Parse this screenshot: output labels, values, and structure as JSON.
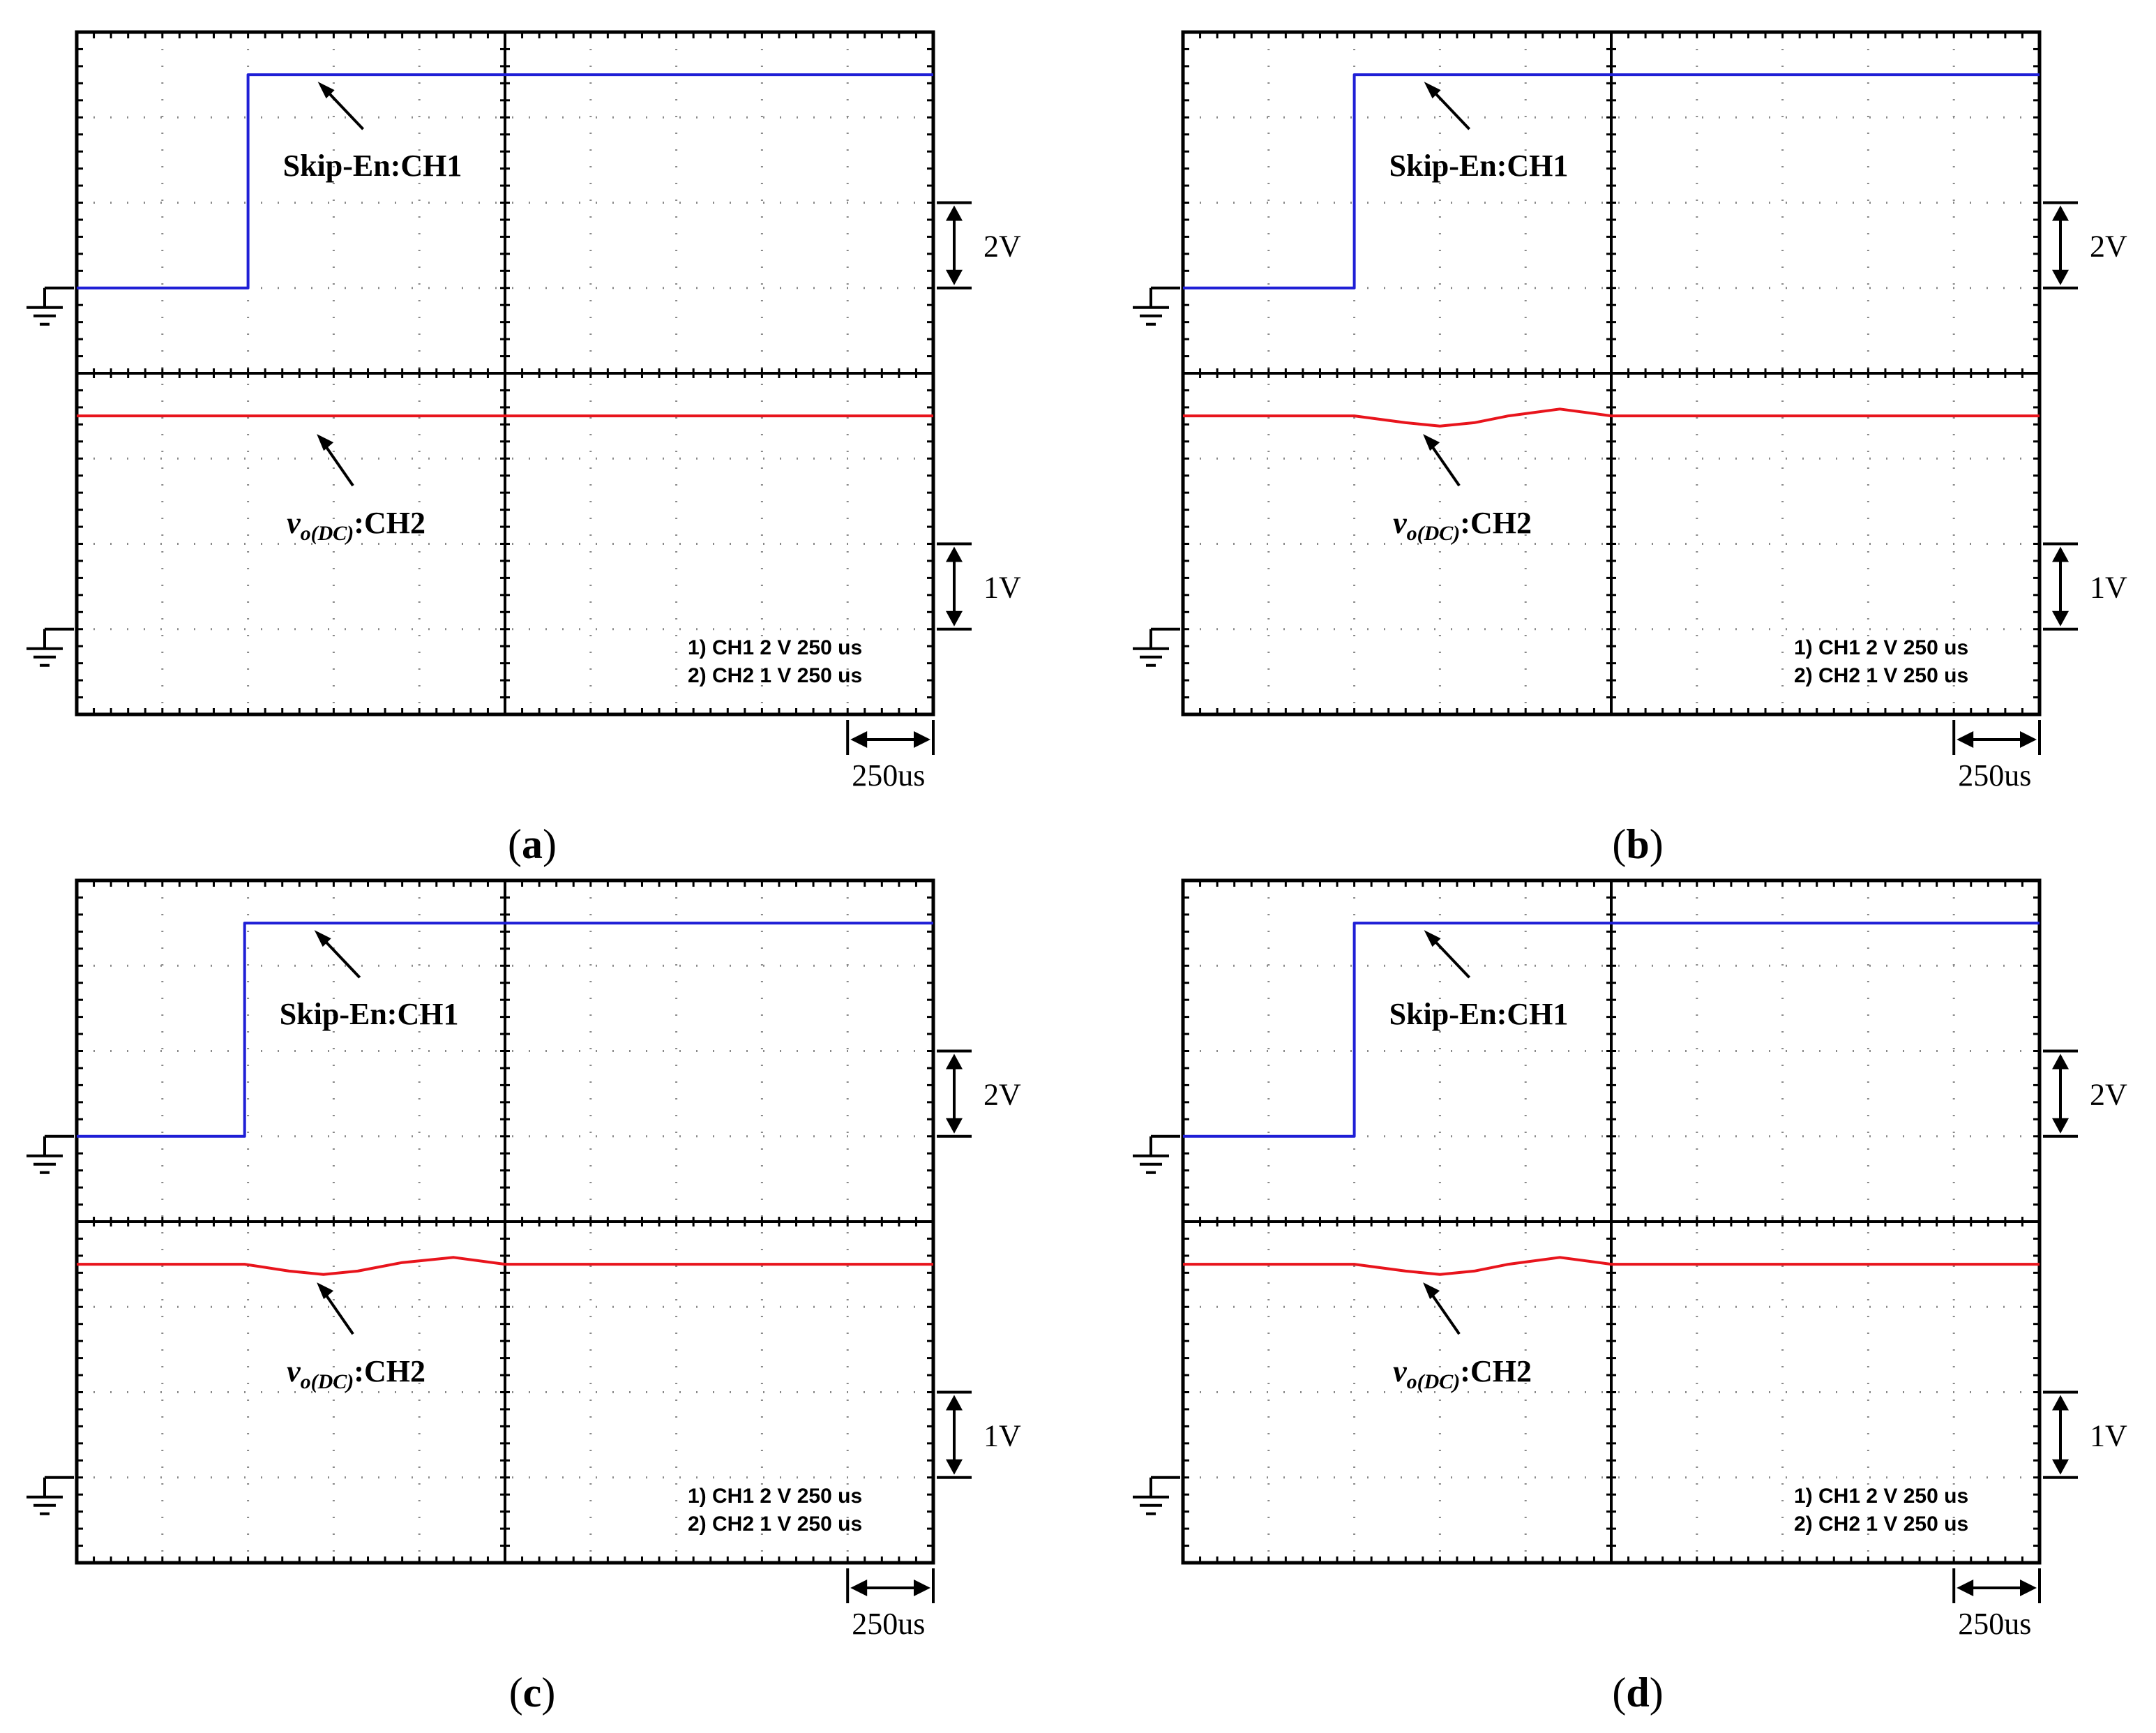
{
  "chart_data": [
    {
      "panel": "a",
      "caption": "a",
      "type": "line",
      "x_unit": "us",
      "time_per_div": "250us",
      "channels": [
        {
          "name": "Skip-En:CH1",
          "label": "Skip-En:CH1",
          "scale_label": "2V",
          "color": "#1f1fd6",
          "x": [
            0,
            500,
            500,
            2500
          ],
          "y": [
            0,
            0,
            5,
            5
          ]
        },
        {
          "name": "vo(DC):CH2",
          "label_main": "v",
          "label_sub": "o(DC)",
          "label_tail": ":CH2",
          "scale_label": "1V",
          "color": "#e8141c",
          "x": [
            0,
            2500
          ],
          "y": [
            2.5,
            2.5
          ]
        }
      ],
      "readout": [
        "1) CH1  2 V    250 us",
        "2) CH2  1 V    250 us"
      ],
      "time_scale_label": "250us"
    },
    {
      "panel": "b",
      "caption": "b",
      "type": "line",
      "x_unit": "us",
      "time_per_div": "250us",
      "channels": [
        {
          "name": "Skip-En:CH1",
          "label": "Skip-En:CH1",
          "scale_label": "2V",
          "color": "#1f1fd6",
          "x": [
            0,
            500,
            500,
            2500
          ],
          "y": [
            0,
            0,
            5,
            5
          ]
        },
        {
          "name": "vo(DC):CH2",
          "label_main": "v",
          "label_sub": "o(DC)",
          "label_tail": ":CH2",
          "scale_label": "1V",
          "color": "#e8141c",
          "x": [
            0,
            500,
            650,
            750,
            850,
            950,
            1100,
            1250,
            2500
          ],
          "y": [
            2.5,
            2.5,
            2.42,
            2.38,
            2.42,
            2.5,
            2.58,
            2.5,
            2.5
          ]
        }
      ],
      "readout": [
        "1) CH1  2 V    250 us",
        "2) CH2  1 V    250 us"
      ],
      "time_scale_label": "250us"
    },
    {
      "panel": "c",
      "caption": "c",
      "type": "line",
      "x_unit": "us",
      "time_per_div": "250us",
      "channels": [
        {
          "name": "Skip-En:CH1",
          "label": "Skip-En:CH1",
          "scale_label": "2V",
          "color": "#1f1fd6",
          "x": [
            0,
            490,
            490,
            2500
          ],
          "y": [
            0,
            0,
            5,
            5
          ]
        },
        {
          "name": "vo(DC):CH2",
          "label_main": "v",
          "label_sub": "o(DC)",
          "label_tail": ":CH2",
          "scale_label": "1V",
          "color": "#e8141c",
          "x": [
            0,
            490,
            620,
            720,
            820,
            950,
            1100,
            1250,
            2500
          ],
          "y": [
            2.5,
            2.5,
            2.42,
            2.38,
            2.42,
            2.52,
            2.58,
            2.5,
            2.5
          ]
        }
      ],
      "readout": [
        "1) CH1  2 V    250 us",
        "2) CH2  1 V    250 us"
      ],
      "time_scale_label": "250us"
    },
    {
      "panel": "d",
      "caption": "d",
      "type": "line",
      "x_unit": "us",
      "time_per_div": "250us",
      "channels": [
        {
          "name": "Skip-En:CH1",
          "label": "Skip-En:CH1",
          "scale_label": "2V",
          "color": "#1f1fd6",
          "x": [
            0,
            500,
            500,
            2500
          ],
          "y": [
            0,
            0,
            5,
            5
          ]
        },
        {
          "name": "vo(DC):CH2",
          "label_main": "v",
          "label_sub": "o(DC)",
          "label_tail": ":CH2",
          "scale_label": "1V",
          "color": "#e8141c",
          "x": [
            0,
            500,
            650,
            750,
            850,
            950,
            1100,
            1250,
            2500
          ],
          "y": [
            2.5,
            2.5,
            2.42,
            2.38,
            2.42,
            2.5,
            2.58,
            2.5,
            2.5
          ]
        }
      ],
      "readout": [
        "1) CH1  2 V    250 us",
        "2) CH2  1 V    250 us"
      ],
      "time_scale_label": "250us"
    }
  ]
}
